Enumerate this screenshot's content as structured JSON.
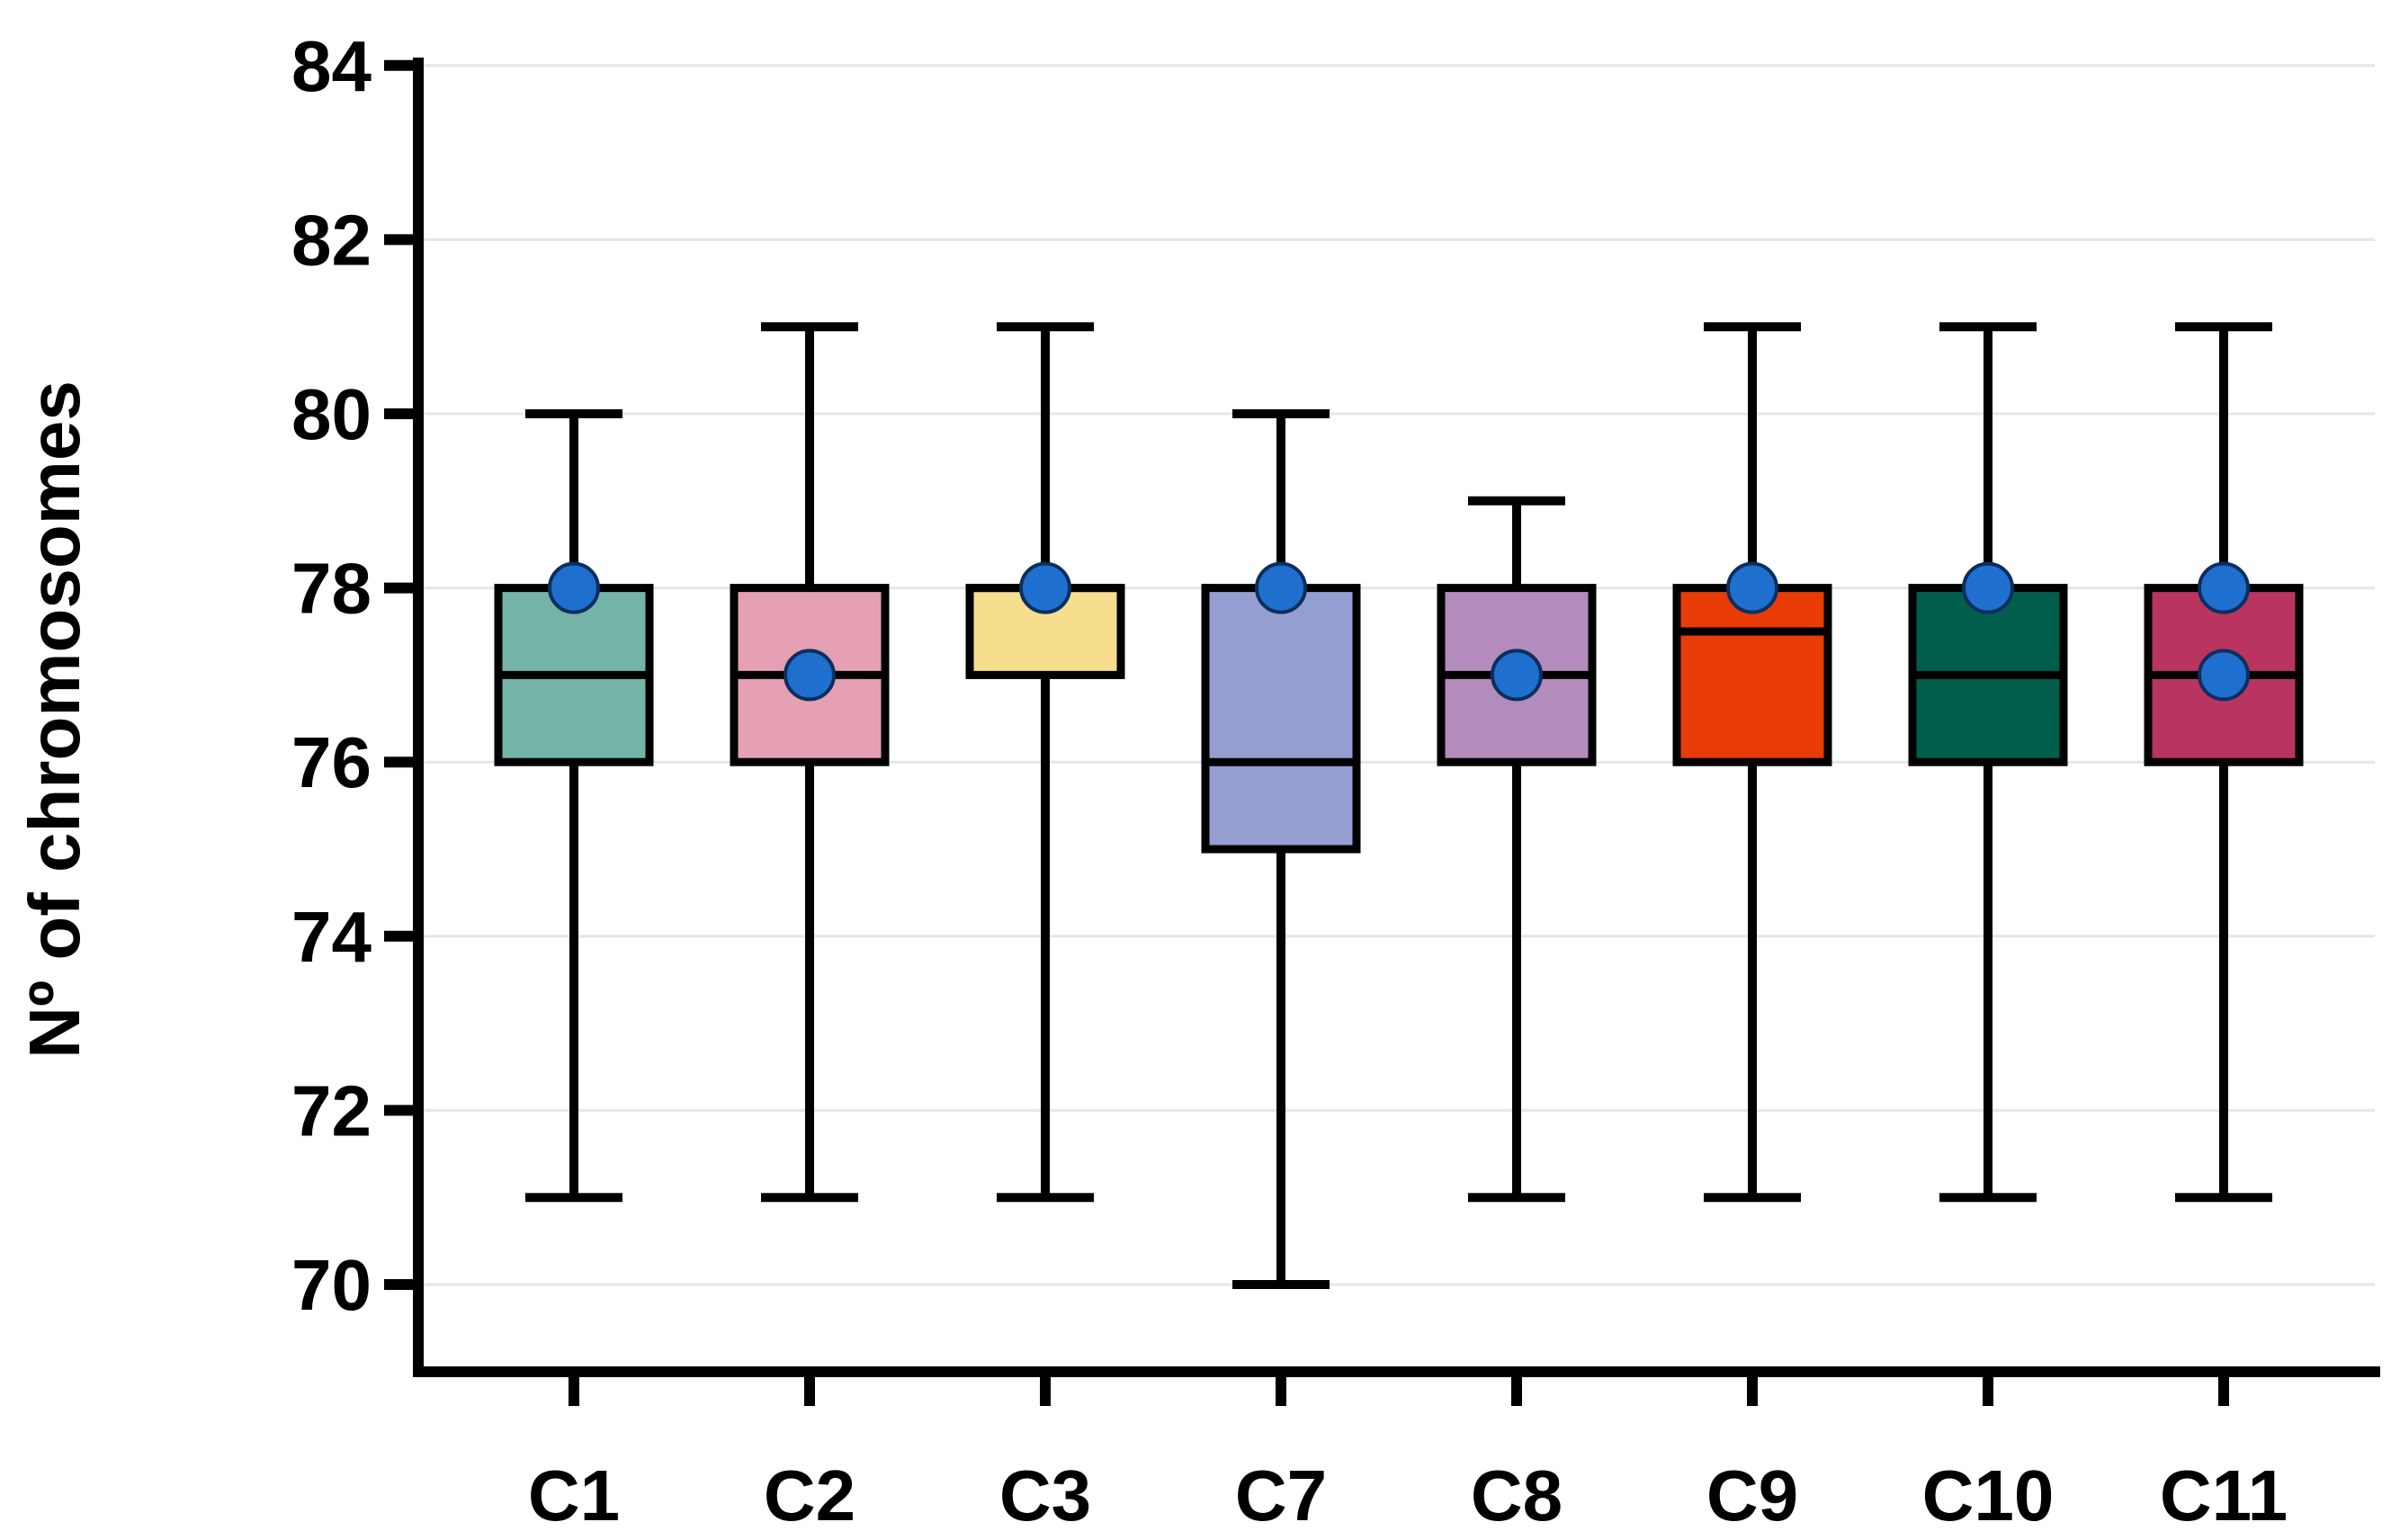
{
  "chart_data": {
    "type": "box",
    "title": "",
    "xlabel": "",
    "ylabel": "Nº of chromosomes",
    "ylim": [
      69,
      84
    ],
    "yticks": [
      70,
      72,
      74,
      76,
      78,
      80,
      82,
      84
    ],
    "grid": true,
    "legend": "none",
    "categories": [
      "C1",
      "C2",
      "C3",
      "C7",
      "C8",
      "C9",
      "C10",
      "C11"
    ],
    "boxes": [
      {
        "category": "C1",
        "min": 71,
        "q1": 76,
        "median": 77,
        "q3": 78,
        "max": 80,
        "color": "#74b3a8",
        "points": [
          78
        ]
      },
      {
        "category": "C2",
        "min": 71,
        "q1": 76,
        "median": 77,
        "q3": 78,
        "max": 81,
        "color": "#e5a0b3",
        "points": [
          77
        ]
      },
      {
        "category": "C3",
        "min": 71,
        "q1": 77,
        "median": 78,
        "q3": 78,
        "max": 81,
        "color": "#f7dd8e",
        "points": [
          78
        ]
      },
      {
        "category": "C7",
        "min": 70,
        "q1": 75,
        "median": 76,
        "q3": 78,
        "max": 80,
        "color": "#959ed1",
        "points": [
          78
        ]
      },
      {
        "category": "C8",
        "min": 71,
        "q1": 76,
        "median": 77,
        "q3": 78,
        "max": 79,
        "color": "#b38bbd",
        "points": [
          77
        ]
      },
      {
        "category": "C9",
        "min": 71,
        "q1": 76,
        "median": 77.5,
        "q3": 78,
        "max": 81,
        "color": "#e83b06",
        "points": [
          78
        ]
      },
      {
        "category": "C10",
        "min": 71,
        "q1": 76,
        "median": 77,
        "q3": 78,
        "max": 81,
        "color": "#015e4c",
        "points": [
          78
        ]
      },
      {
        "category": "C11",
        "min": 71,
        "q1": 76,
        "median": 77,
        "q3": 78,
        "max": 81,
        "color": "#b93460",
        "points": [
          78,
          77
        ]
      }
    ],
    "point_color": "#1f6fcf"
  }
}
